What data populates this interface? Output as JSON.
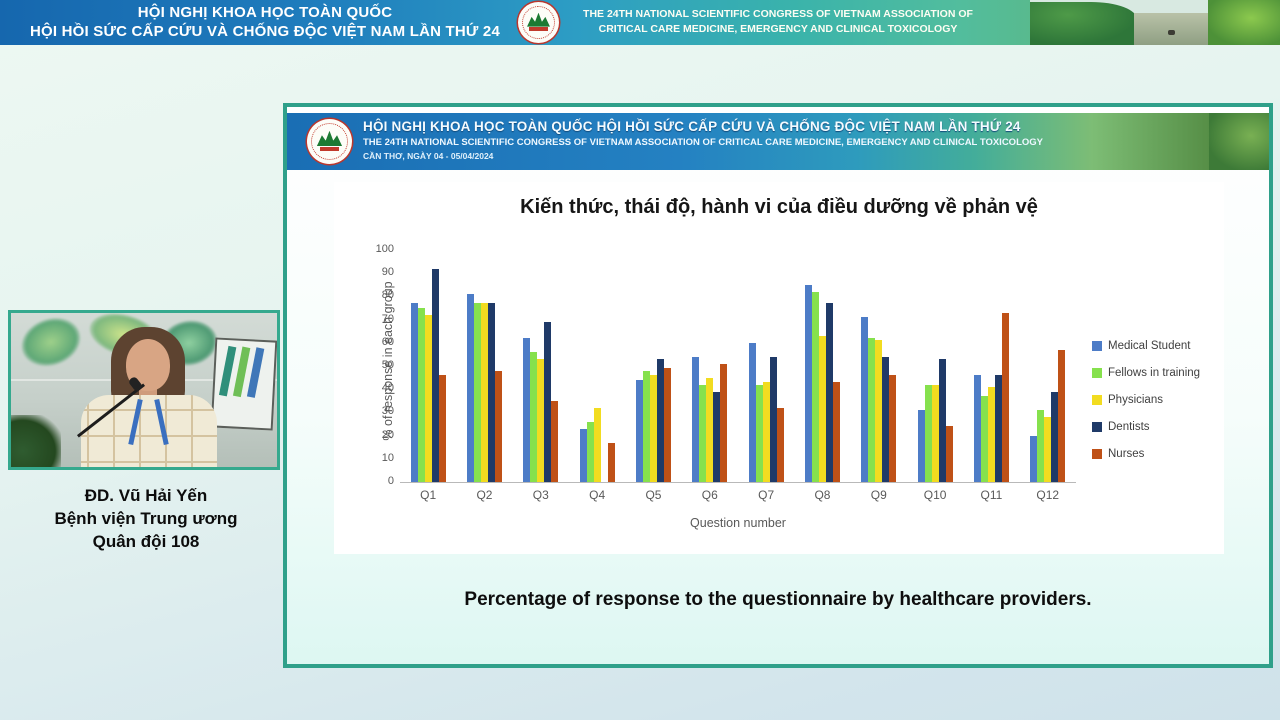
{
  "banner": {
    "title_vi_line1": "HỘI NGHỊ KHOA HỌC TOÀN QUỐC",
    "title_vi_line2": "HỘI HỒI SỨC CẤP CỨU VÀ CHỐNG ĐỘC VIỆT NAM LẦN THỨ 24",
    "title_en_line1": "THE 24TH NATIONAL SCIENTIFIC CONGRESS OF VIETNAM ASSOCIATION OF",
    "title_en_line2": "CRITICAL CARE MEDICINE, EMERGENCY AND CLINICAL TOXICOLOGY",
    "logo_name": "vietnam-critical-care-association-logo"
  },
  "speaker": {
    "name": "ĐD. Vũ Hải Yến",
    "affiliation_line1": "Bệnh viện Trung ương",
    "affiliation_line2": "Quân đội 108"
  },
  "slide": {
    "header": {
      "line1": "HỘI NGHỊ KHOA HỌC TOÀN QUỐC HỘI HỒI SỨC CẤP CỨU VÀ CHỐNG ĐỘC VIỆT NAM LẦN THỨ 24",
      "line2": "THE 24TH NATIONAL SCIENTIFIC CONGRESS OF VIETNAM ASSOCIATION OF CRITICAL CARE MEDICINE, EMERGENCY AND CLINICAL TOXICOLOGY",
      "line3": "CẦN THƠ, NGÀY 04 - 05/04/2024"
    },
    "caption": "Percentage of response to the questionnaire by healthcare providers."
  },
  "colors": {
    "slide_border": "#2fa08a",
    "banner_blue": "#1667ae",
    "header_band_blue": "#1a6eb4",
    "video_border": "#35a98e"
  },
  "chart_data": {
    "type": "bar",
    "title": "Kiến thức, thái độ, hành vi của điều dưỡng về phản vệ",
    "categories": [
      "Q1",
      "Q2",
      "Q3",
      "Q4",
      "Q5",
      "Q6",
      "Q7",
      "Q8",
      "Q9",
      "Q10",
      "Q11",
      "Q12"
    ],
    "series": [
      {
        "name": "Medical Student",
        "color": "#4d7cc7",
        "values": [
          77,
          81,
          62,
          23,
          44,
          54,
          60,
          85,
          71,
          31,
          46,
          20
        ]
      },
      {
        "name": "Fellows in training",
        "color": "#86e14d",
        "values": [
          75,
          77,
          56,
          26,
          48,
          42,
          42,
          82,
          62,
          42,
          37,
          31
        ]
      },
      {
        "name": "Physicians",
        "color": "#f2dc20",
        "values": [
          72,
          77,
          53,
          32,
          46,
          45,
          43,
          63,
          61,
          42,
          41,
          28
        ]
      },
      {
        "name": "Dentists",
        "color": "#1f3a68",
        "values": [
          92,
          77,
          69,
          0,
          53,
          39,
          54,
          77,
          54,
          53,
          46,
          39
        ]
      },
      {
        "name": "Nurses",
        "color": "#bf5117",
        "values": [
          46,
          48,
          35,
          17,
          49,
          51,
          32,
          43,
          46,
          24,
          73,
          57
        ]
      }
    ],
    "xlabel": "Question number",
    "ylabel": "% of response in each group",
    "ylim": [
      0,
      100
    ],
    "ytick_step": 10,
    "legend_position": "right",
    "grid": false
  }
}
